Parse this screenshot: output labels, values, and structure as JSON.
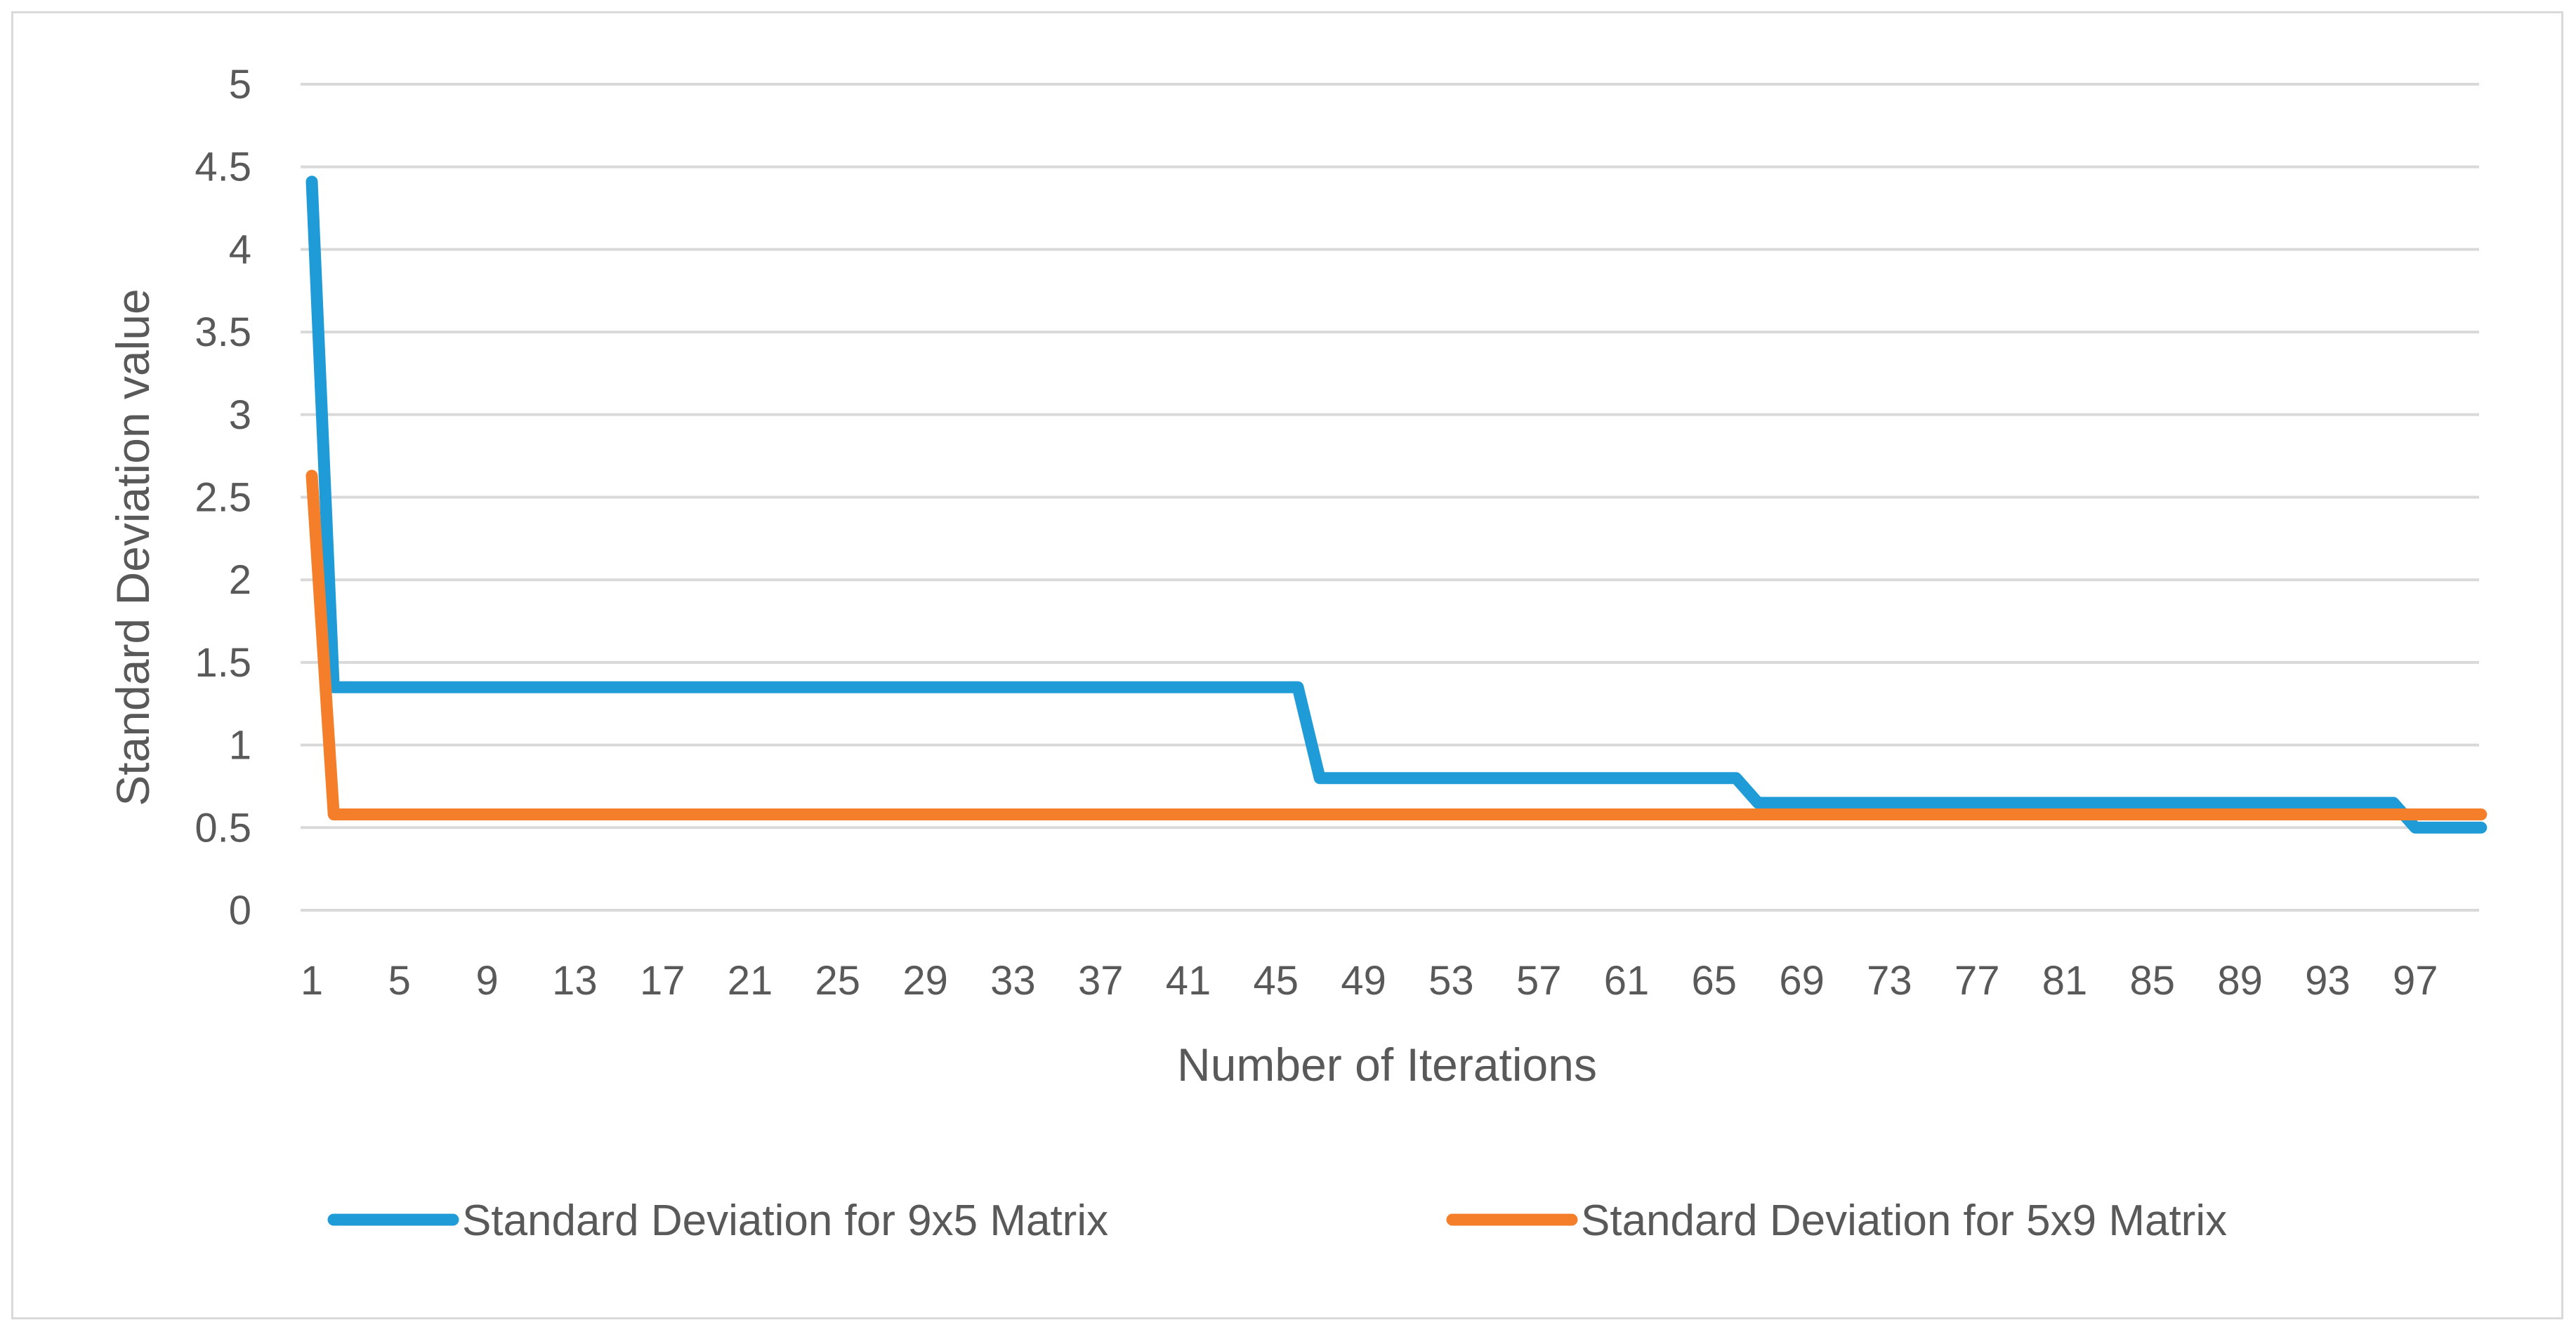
{
  "chart_data": {
    "type": "line",
    "title": "",
    "xlabel": "Number of Iterations",
    "ylabel": "Standard Deviation value",
    "ylim": [
      0,
      5
    ],
    "yticks": [
      "0",
      "0.5",
      "1",
      "1.5",
      "2",
      "2.5",
      "3",
      "3.5",
      "4",
      "4.5",
      "5"
    ],
    "xlim": [
      1,
      100
    ],
    "xtick_labels": [
      "1",
      "5",
      "9",
      "13",
      "17",
      "21",
      "25",
      "29",
      "33",
      "37",
      "41",
      "45",
      "49",
      "53",
      "57",
      "61",
      "65",
      "69",
      "73",
      "77",
      "81",
      "85",
      "89",
      "93",
      "97"
    ],
    "grid": "horizontal",
    "legend": "bottom",
    "series": [
      {
        "name": "Standard Deviation for 9x5 Matrix",
        "color": "#1f9bd7",
        "points": [
          [
            1,
            4.41
          ],
          [
            2,
            1.35
          ],
          [
            46,
            1.35
          ],
          [
            47,
            0.8
          ],
          [
            66,
            0.8
          ],
          [
            67,
            0.65
          ],
          [
            96,
            0.65
          ],
          [
            97,
            0.5
          ],
          [
            100,
            0.5
          ]
        ]
      },
      {
        "name": "Standard Deviation for 5x9 Matrix",
        "color": "#f47e2a",
        "points": [
          [
            1,
            2.63
          ],
          [
            2,
            0.58
          ],
          [
            100,
            0.58
          ]
        ]
      }
    ]
  }
}
